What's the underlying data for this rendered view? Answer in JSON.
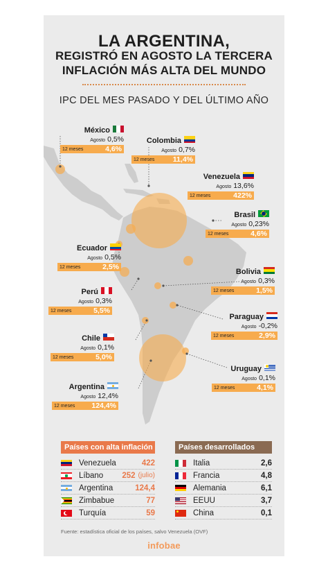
{
  "header": {
    "title_line1": "LA ARGENTINA,",
    "title_line2": "REGISTRÓ EN AGOSTO LA TERCERA",
    "title_line3": "INFLACIÓN MÁS ALTA DEL MUNDO",
    "subtitle": "IPC DEL MES PASADO Y DEL ÚLTIMO AÑO"
  },
  "colors": {
    "card": "#ebebeb",
    "land": "#cdcdcd",
    "bar": "#f7ab4d",
    "accent": "#e9794a",
    "dev_header": "#8a6a52"
  },
  "chart_data": {
    "type": "table",
    "month_label": "Agosto",
    "year_label": "12 meses",
    "countries": [
      {
        "name": "México",
        "flag": "mexico-flag",
        "month": "0,5%",
        "year": "4,6%"
      },
      {
        "name": "Colombia",
        "flag": "colombia-flag",
        "month": "0,7%",
        "year": "11,4%"
      },
      {
        "name": "Venezuela",
        "flag": "venezuela-flag",
        "month": "13,6%",
        "year": "422%"
      },
      {
        "name": "Brasil",
        "flag": "brasil-flag",
        "month": "0,23%",
        "year": "4,6%"
      },
      {
        "name": "Ecuador",
        "flag": "ecuador-flag",
        "month": "0,5%",
        "year": "2,5%"
      },
      {
        "name": "Bolivia",
        "flag": "bolivia-flag",
        "month": "0,3%",
        "year": "1,5%"
      },
      {
        "name": "Perú",
        "flag": "peru-flag",
        "month": "0,3%",
        "year": "5,5%"
      },
      {
        "name": "Paraguay",
        "flag": "paraguay-flag",
        "month": "-0,2%",
        "year": "2,9%"
      },
      {
        "name": "Chile",
        "flag": "chile-flag",
        "month": "0,1%",
        "year": "5,0%"
      },
      {
        "name": "Uruguay",
        "flag": "uruguay-flag",
        "month": "0,1%",
        "year": "4,1%"
      },
      {
        "name": "Argentina",
        "flag": "argentina-flag",
        "month": "12,4%",
        "year": "124,4%"
      }
    ],
    "high_inflation": {
      "title": "Países con alta inflación",
      "rows": [
        {
          "name": "Venezuela",
          "value": "422",
          "note": ""
        },
        {
          "name": "Líbano",
          "value": "252",
          "note": "(julio)"
        },
        {
          "name": "Argentina",
          "value": "124,4",
          "note": ""
        },
        {
          "name": "Zimbabue",
          "value": "77",
          "note": ""
        },
        {
          "name": "Turquía",
          "value": "59",
          "note": ""
        }
      ]
    },
    "developed": {
      "title": "Países desarrollados",
      "rows": [
        {
          "name": "Italia",
          "value": "2,6"
        },
        {
          "name": "Francia",
          "value": "4,8"
        },
        {
          "name": "Alemania",
          "value": "6,1"
        },
        {
          "name": "EEUU",
          "value": "3,7"
        },
        {
          "name": "China",
          "value": "0,1"
        }
      ]
    }
  },
  "footer": {
    "source": "Fuente: estadística oficial de los países, salvo Venezuela (OVF)",
    "logo": "infobae"
  }
}
